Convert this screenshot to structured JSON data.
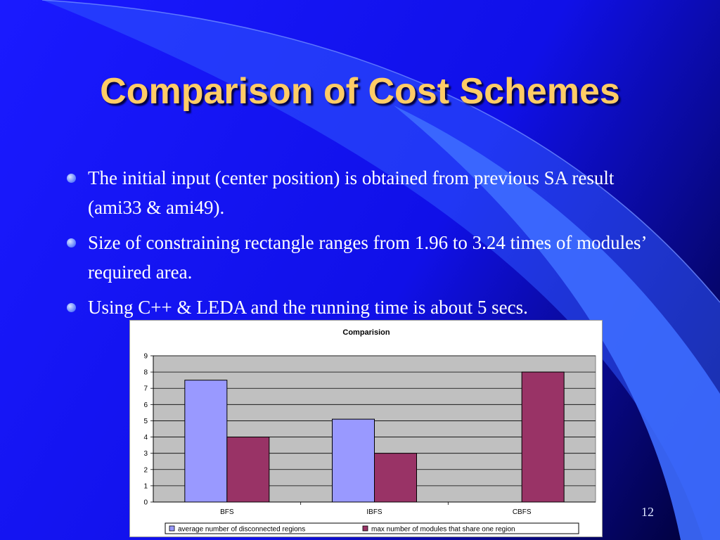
{
  "slide": {
    "title": "Comparison of Cost Schemes",
    "bullets": [
      "The initial input (center position) is obtained from previous SA result (ami33 & ami49).",
      "Size of constraining rectangle ranges from 1.96 to 3.24 times of modules’ required area.",
      "Using C++ & LEDA and the running time is about 5 secs."
    ],
    "page_number": "12"
  },
  "colors": {
    "title": "#ffcc66",
    "plot_area": "#c0c0c0",
    "series_1": "#9999ff",
    "series_2": "#993366"
  },
  "chart_data": {
    "type": "bar",
    "title": "Comparision",
    "categories": [
      "BFS",
      "IBFS",
      "CBFS"
    ],
    "series": [
      {
        "name": "average number of disconnected regions",
        "values": [
          7.5,
          5.1,
          0
        ]
      },
      {
        "name": "max number of modules that share one region",
        "values": [
          4,
          3,
          8
        ]
      }
    ],
    "ylim": [
      0,
      9
    ],
    "yticks": [
      0,
      1,
      2,
      3,
      4,
      5,
      6,
      7,
      8,
      9
    ],
    "grid": true,
    "legend": "bottom"
  }
}
